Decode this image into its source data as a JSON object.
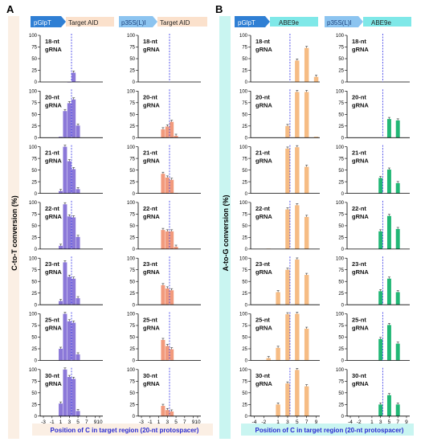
{
  "panels": [
    {
      "letter": "A",
      "promoters": [
        {
          "promoter": "pGlpT",
          "target": "Target AID"
        },
        {
          "promoter": "p35S(L)I",
          "target": "Target AID"
        }
      ],
      "y_label": "C-to-T conversion (%)",
      "x_label": "Position of C in target region (20-nt protospacer)"
    },
    {
      "letter": "B",
      "promoters": [
        {
          "promoter": "pGlpT",
          "target": "ABE9e"
        },
        {
          "promoter": "p35S(L)I",
          "target": "ABE9e"
        }
      ],
      "y_label": "A-to-G conversion (%)",
      "x_label": "Position of C in target region (20-nt protospacer)"
    }
  ],
  "gRNA_word": "gRNA",
  "colors": {
    "purple": "#8b78d8",
    "salmon": "#f29a7c",
    "peach": "#f6bc84",
    "green": "#22b776",
    "dashed_line": "#2e2ee6",
    "cyan": "#7fe8e8",
    "promoter_blue": "#2f7fd4",
    "promoter_lightblue": "#8cc4f0",
    "peach_bg": "#f9ddc9",
    "cyan_bg": "#c9f5f1"
  },
  "chart_data": [
    {
      "type": "bar",
      "panel": "A",
      "promoter": "pGlpT",
      "ylabel": "C-to-T conversion (%)",
      "ylim": [
        0,
        100
      ],
      "y_ticks": [
        0,
        25,
        50,
        75,
        100
      ],
      "x_ticks": [
        "-3",
        "-1",
        "1",
        "3",
        "5",
        "7",
        "9"
      ],
      "x_axis_end_label": "10",
      "target_line_position": 3,
      "rows": [
        {
          "label": "18-nt",
          "values": [
            {
              "x": 3,
              "y": 0
            },
            {
              "x": 4,
              "y": 20
            },
            {
              "x": 5,
              "y": 1
            }
          ]
        },
        {
          "label": "20-nt",
          "values": [
            {
              "x": 1,
              "y": 2
            },
            {
              "x": 2,
              "y": 57
            },
            {
              "x": 3,
              "y": 74
            },
            {
              "x": 4,
              "y": 82
            },
            {
              "x": 5,
              "y": 26
            }
          ]
        },
        {
          "label": "21-nt",
          "values": [
            {
              "x": 1,
              "y": 5
            },
            {
              "x": 2,
              "y": 100
            },
            {
              "x": 3,
              "y": 69
            },
            {
              "x": 4,
              "y": 52
            },
            {
              "x": 5,
              "y": 9
            }
          ]
        },
        {
          "label": "22-nt",
          "values": [
            {
              "x": 1,
              "y": 7
            },
            {
              "x": 2,
              "y": 96
            },
            {
              "x": 3,
              "y": 70
            },
            {
              "x": 4,
              "y": 68
            },
            {
              "x": 5,
              "y": 26
            }
          ]
        },
        {
          "label": "23-nt",
          "values": [
            {
              "x": 1,
              "y": 8
            },
            {
              "x": 2,
              "y": 91
            },
            {
              "x": 3,
              "y": 60
            },
            {
              "x": 4,
              "y": 56
            },
            {
              "x": 5,
              "y": 14
            }
          ]
        },
        {
          "label": "25-nt",
          "values": [
            {
              "x": 1,
              "y": 25
            },
            {
              "x": 2,
              "y": 100
            },
            {
              "x": 3,
              "y": 84
            },
            {
              "x": 4,
              "y": 81
            },
            {
              "x": 5,
              "y": 13
            }
          ]
        },
        {
          "label": "30-nt",
          "values": [
            {
              "x": 1,
              "y": 27
            },
            {
              "x": 2,
              "y": 100
            },
            {
              "x": 3,
              "y": 84
            },
            {
              "x": 4,
              "y": 80
            },
            {
              "x": 5,
              "y": 11
            }
          ]
        }
      ]
    },
    {
      "type": "bar",
      "panel": "A",
      "promoter": "p35S(L)I",
      "ylim": [
        0,
        100
      ],
      "y_ticks": [
        0,
        25,
        50,
        75,
        100
      ],
      "x_ticks": [
        "-3",
        "-1",
        "1",
        "3",
        "5",
        "7",
        "9"
      ],
      "x_axis_end_label": "10",
      "target_line_position": 3,
      "rows": [
        {
          "label": "18-nt",
          "values": []
        },
        {
          "label": "20-nt",
          "values": [
            {
              "x": 2,
              "y": 18
            },
            {
              "x": 3,
              "y": 24
            },
            {
              "x": 4,
              "y": 34
            },
            {
              "x": 5,
              "y": 4
            }
          ]
        },
        {
          "label": "21-nt",
          "values": [
            {
              "x": 2,
              "y": 42
            },
            {
              "x": 3,
              "y": 34
            },
            {
              "x": 4,
              "y": 29
            },
            {
              "x": 5,
              "y": 1
            }
          ]
        },
        {
          "label": "22-nt",
          "values": [
            {
              "x": 2,
              "y": 41
            },
            {
              "x": 3,
              "y": 38
            },
            {
              "x": 4,
              "y": 38
            },
            {
              "x": 5,
              "y": 5
            }
          ]
        },
        {
          "label": "23-nt",
          "values": [
            {
              "x": 2,
              "y": 42
            },
            {
              "x": 3,
              "y": 35
            },
            {
              "x": 4,
              "y": 31
            }
          ]
        },
        {
          "label": "25-nt",
          "values": [
            {
              "x": 2,
              "y": 44
            },
            {
              "x": 3,
              "y": 31
            },
            {
              "x": 4,
              "y": 24
            }
          ]
        },
        {
          "label": "30-nt",
          "values": [
            {
              "x": 2,
              "y": 22
            },
            {
              "x": 3,
              "y": 13
            },
            {
              "x": 4,
              "y": 10
            }
          ]
        }
      ]
    },
    {
      "type": "bar",
      "panel": "B",
      "promoter": "pGlpT",
      "ylabel": "A-to-G conversion (%)",
      "ylim": [
        0,
        100
      ],
      "y_ticks": [
        0,
        25,
        50,
        75,
        100
      ],
      "x_ticks": [
        "-4",
        "-2",
        "1",
        "3",
        "5",
        "7",
        "9"
      ],
      "target_line_position": 3,
      "rows": [
        {
          "label": "18-nt",
          "values": [
            {
              "x": 5,
              "y": 46
            },
            {
              "x": 7,
              "y": 73
            },
            {
              "x": 9,
              "y": 11
            }
          ]
        },
        {
          "label": "20-nt",
          "values": [
            {
              "x": 3,
              "y": 25
            },
            {
              "x": 5,
              "y": 98
            },
            {
              "x": 7,
              "y": 98
            },
            {
              "x": 9,
              "y": 2
            }
          ]
        },
        {
          "label": "21-nt",
          "values": [
            {
              "x": 3,
              "y": 96
            },
            {
              "x": 5,
              "y": 99
            },
            {
              "x": 7,
              "y": 57
            }
          ]
        },
        {
          "label": "22-nt",
          "values": [
            {
              "x": -1,
              "y": 1
            },
            {
              "x": 3,
              "y": 85
            },
            {
              "x": 5,
              "y": 94
            },
            {
              "x": 7,
              "y": 69
            }
          ]
        },
        {
          "label": "23-nt",
          "values": [
            {
              "x": 1,
              "y": 27
            },
            {
              "x": 3,
              "y": 75
            },
            {
              "x": 5,
              "y": 97
            },
            {
              "x": 7,
              "y": 64
            }
          ]
        },
        {
          "label": "25-nt",
          "values": [
            {
              "x": -1,
              "y": 5
            },
            {
              "x": 1,
              "y": 27
            },
            {
              "x": 3,
              "y": 99
            },
            {
              "x": 5,
              "y": 100
            },
            {
              "x": 7,
              "y": 68
            }
          ]
        },
        {
          "label": "30-nt",
          "values": [
            {
              "x": 1,
              "y": 25
            },
            {
              "x": 3,
              "y": 70
            },
            {
              "x": 5,
              "y": 99
            },
            {
              "x": 7,
              "y": 64
            }
          ]
        }
      ]
    },
    {
      "type": "bar",
      "panel": "B",
      "promoter": "p35S(L)I",
      "ylim": [
        0,
        100
      ],
      "y_ticks": [
        0,
        25,
        50,
        75,
        100
      ],
      "x_ticks": [
        "-4",
        "-2",
        "1",
        "3",
        "5",
        "7",
        "9"
      ],
      "target_line_position": 3,
      "rows": [
        {
          "label": "18-nt",
          "values": []
        },
        {
          "label": "20-nt",
          "values": [
            {
              "x": 5,
              "y": 40
            },
            {
              "x": 7,
              "y": 37
            }
          ]
        },
        {
          "label": "21-nt",
          "values": [
            {
              "x": 3,
              "y": 33
            },
            {
              "x": 5,
              "y": 51
            },
            {
              "x": 7,
              "y": 22
            }
          ]
        },
        {
          "label": "22-nt",
          "values": [
            {
              "x": 3,
              "y": 38
            },
            {
              "x": 5,
              "y": 71
            },
            {
              "x": 7,
              "y": 43
            }
          ]
        },
        {
          "label": "23-nt",
          "values": [
            {
              "x": 3,
              "y": 29
            },
            {
              "x": 5,
              "y": 56
            },
            {
              "x": 7,
              "y": 27
            }
          ]
        },
        {
          "label": "25-nt",
          "values": [
            {
              "x": 3,
              "y": 46
            },
            {
              "x": 5,
              "y": 76
            },
            {
              "x": 7,
              "y": 36
            }
          ]
        },
        {
          "label": "30-nt",
          "values": [
            {
              "x": 3,
              "y": 25
            },
            {
              "x": 5,
              "y": 45
            },
            {
              "x": 7,
              "y": 25
            }
          ]
        }
      ]
    }
  ]
}
